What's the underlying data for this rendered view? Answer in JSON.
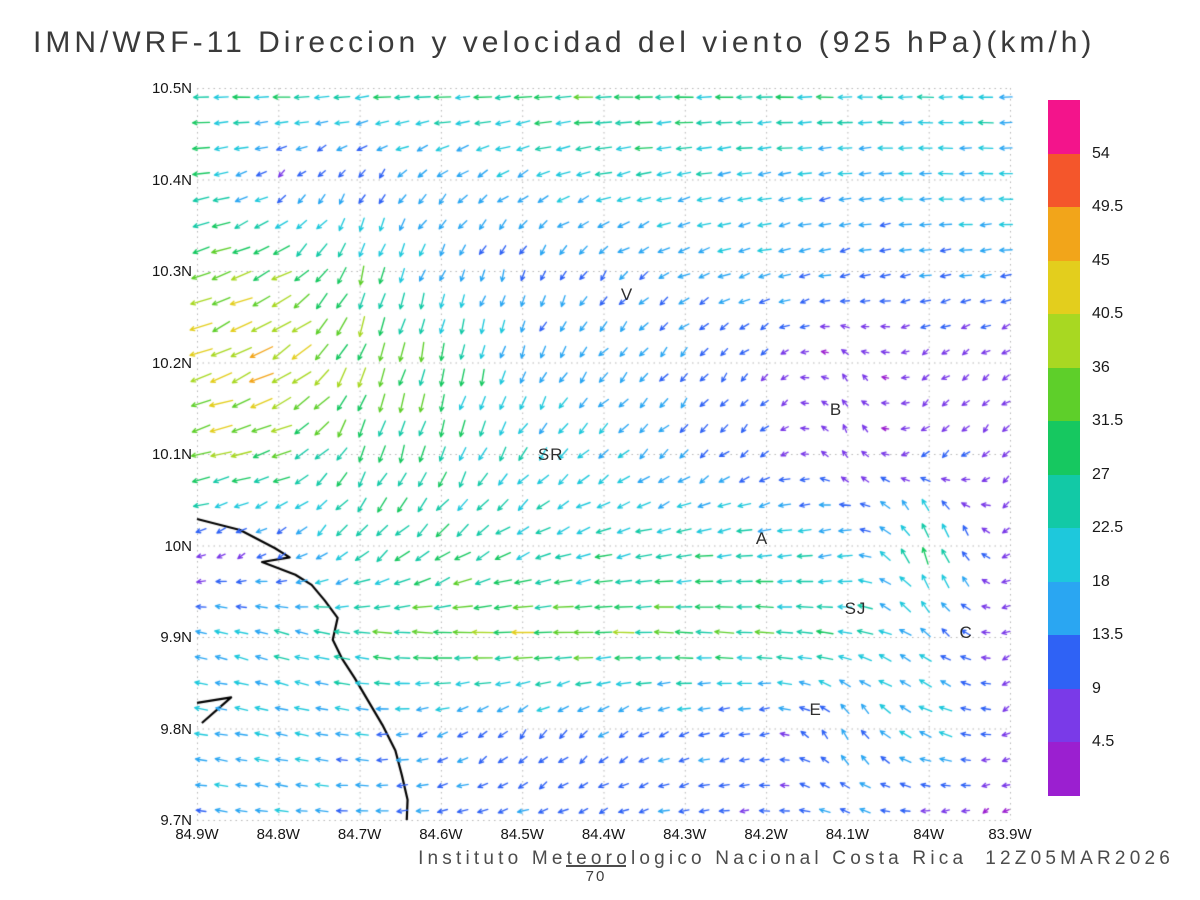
{
  "chart_data": {
    "type": "vector-field",
    "title": "IMN/WRF-11 Direccion y velocidad del viento (925 hPa)(km/h)",
    "speed_units": "km/h",
    "lon_range": [
      84.9,
      83.9
    ],
    "lat_range": [
      10.5,
      9.7
    ],
    "lon_ticks": [
      "84.9W",
      "84.8W",
      "84.7W",
      "84.6W",
      "84.5W",
      "84.4W",
      "84.3W",
      "84.2W",
      "84.1W",
      "84W",
      "83.9W"
    ],
    "lat_ticks": [
      "10.5N",
      "10.4N",
      "10.3N",
      "10.2N",
      "10.1N",
      "10N",
      "9.9N",
      "9.8N",
      "9.7N"
    ],
    "speed_levels": [
      4.5,
      9,
      13.5,
      18,
      22.5,
      27,
      31.5,
      36,
      40.5,
      45,
      49.5,
      54
    ],
    "speed_colors": [
      "#9b1fd0",
      "#7a3ae8",
      "#2f62f5",
      "#2aa6f2",
      "#1ec8dc",
      "#12c9a6",
      "#16c860",
      "#5ecf2a",
      "#a8d822",
      "#e3ce1d",
      "#f2a51a",
      "#f4562b",
      "#f3148b"
    ],
    "grid": {
      "lat_start": 10.5,
      "lat_step": -0.1,
      "lon_start": 84.9,
      "lon_step": -0.1,
      "u": [
        [
          -24,
          -26,
          -25,
          -27,
          -28,
          -30,
          -28,
          -26,
          -24,
          -22,
          -20
        ],
        [
          -26,
          -6,
          -5,
          -12,
          -15,
          -22,
          -20,
          -18,
          -16,
          -18,
          -18
        ],
        [
          -34,
          -30,
          -8,
          -6,
          -4,
          -8,
          -14,
          -16,
          -12,
          -14,
          -15
        ],
        [
          -36,
          -40,
          -12,
          -5,
          -6,
          -10,
          -8,
          -6,
          -4,
          -5,
          -6
        ],
        [
          -38,
          -30,
          -10,
          -8,
          -12,
          -14,
          -10,
          -8,
          -4,
          -8,
          -6
        ],
        [
          -6,
          -8,
          -18,
          -22,
          -20,
          -22,
          -24,
          -22,
          -18,
          -10,
          -6
        ],
        [
          -16,
          -20,
          -26,
          -34,
          -36,
          -32,
          -30,
          -28,
          -24,
          -12,
          -6
        ],
        [
          -16,
          -18,
          -16,
          -12,
          -8,
          -10,
          -12,
          -10,
          -6,
          -20,
          -5
        ],
        [
          -14,
          -16,
          -15,
          -14,
          -12,
          -10,
          -12,
          -10,
          -14,
          -6,
          -4
        ]
      ],
      "v": [
        [
          0,
          0,
          -2,
          0,
          -2,
          0,
          0,
          0,
          0,
          0,
          0
        ],
        [
          -4,
          -6,
          -8,
          -10,
          -8,
          -5,
          -4,
          -3,
          -2,
          0,
          0
        ],
        [
          -10,
          -16,
          -28,
          -14,
          -12,
          -10,
          -6,
          -4,
          -3,
          -2,
          -2
        ],
        [
          -14,
          -22,
          -32,
          -30,
          -16,
          -12,
          -10,
          -6,
          5,
          -4,
          -4
        ],
        [
          -8,
          -10,
          -26,
          -24,
          -18,
          -12,
          -10,
          -6,
          8,
          -6,
          -6
        ],
        [
          -4,
          -6,
          -16,
          -18,
          -10,
          -6,
          -4,
          -2,
          -4,
          30,
          -5
        ],
        [
          4,
          6,
          4,
          2,
          0,
          0,
          2,
          2,
          4,
          10,
          -3
        ],
        [
          2,
          4,
          2,
          -6,
          -10,
          -8,
          -4,
          -2,
          14,
          8,
          -3
        ],
        [
          2,
          2,
          0,
          -2,
          -4,
          -4,
          -2,
          0,
          4,
          -2,
          -2
        ]
      ]
    },
    "display_grid": {
      "rows": 29,
      "cols": 41,
      "lat_extent": [
        10.49,
        9.71
      ],
      "lon_extent": [
        84.895,
        83.905
      ]
    },
    "coastline": [
      [
        [
          84.9,
          10.029
        ],
        [
          84.847,
          10.017
        ],
        [
          84.804,
          9.997
        ],
        [
          84.786,
          9.987
        ],
        [
          84.82,
          9.982
        ],
        [
          84.779,
          9.968
        ],
        [
          84.759,
          9.957
        ],
        [
          84.743,
          9.94
        ],
        [
          84.727,
          9.921
        ],
        [
          84.733,
          9.897
        ],
        [
          84.722,
          9.877
        ],
        [
          84.706,
          9.855
        ],
        [
          84.69,
          9.831
        ],
        [
          84.672,
          9.804
        ],
        [
          84.656,
          9.776
        ],
        [
          84.648,
          9.749
        ],
        [
          84.641,
          9.722
        ],
        [
          84.642,
          9.7
        ]
      ],
      [
        [
          84.9,
          9.828
        ],
        [
          84.858,
          9.834
        ],
        [
          84.894,
          9.806
        ]
      ]
    ],
    "cities": [
      {
        "label": "V",
        "lon": 84.371,
        "lat": 10.273
      },
      {
        "label": "B",
        "lon": 84.114,
        "lat": 10.147
      },
      {
        "label": "SR",
        "lon": 84.465,
        "lat": 10.098
      },
      {
        "label": "A",
        "lon": 84.205,
        "lat": 10.006
      },
      {
        "label": "SJ",
        "lon": 84.09,
        "lat": 9.929
      },
      {
        "label": "C",
        "lon": 83.954,
        "lat": 9.903
      },
      {
        "label": "E",
        "lon": 84.139,
        "lat": 9.819
      }
    ]
  },
  "footer": {
    "attribution": "Instituto Meteorologico Nacional Costa Rica",
    "timestamp": "12Z05MAR2026",
    "forecast_hour": "70"
  }
}
